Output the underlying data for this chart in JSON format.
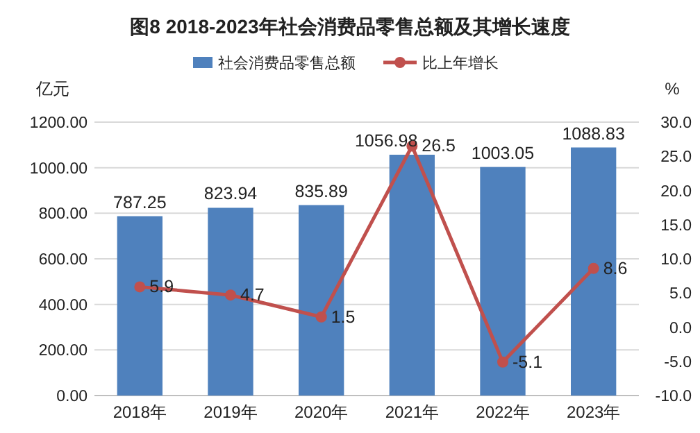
{
  "chart_data": {
    "type": "bar",
    "title": "图8  2018-2023年社会消费品零售总额及其增长速度",
    "ylabel": "亿元",
    "y2label": "%",
    "categories": [
      "2018年",
      "2019年",
      "2020年",
      "2021年",
      "2022年",
      "2023年"
    ],
    "series": [
      {
        "name": "社会消费品零售总额",
        "color": "#4f81bd",
        "values": [
          787.25,
          823.94,
          835.89,
          1056.98,
          1003.05,
          1088.83
        ]
      },
      {
        "name": "比上年增长",
        "type": "line",
        "axis": "y2",
        "color": "#c0504d",
        "values": [
          5.9,
          4.7,
          1.5,
          26.5,
          -5.1,
          8.6
        ]
      }
    ],
    "ylim": [
      0,
      1200
    ],
    "yticks": [
      {
        "value": 0,
        "label": "0.00"
      },
      {
        "value": 200,
        "label": "200.00"
      },
      {
        "value": 400,
        "label": "400.00"
      },
      {
        "value": 600,
        "label": "600.00"
      },
      {
        "value": 800,
        "label": "800.00"
      },
      {
        "value": 1000,
        "label": "1000.00"
      },
      {
        "value": 1200,
        "label": "1200.00"
      }
    ],
    "y2lim": [
      -10,
      30
    ],
    "y2ticks": [
      {
        "value": -10,
        "label": "-10.0"
      },
      {
        "value": -5,
        "label": "-5.0"
      },
      {
        "value": 0,
        "label": "0.0"
      },
      {
        "value": 5,
        "label": "5.0"
      },
      {
        "value": 10,
        "label": "10.0"
      },
      {
        "value": 15,
        "label": "15.0"
      },
      {
        "value": 20,
        "label": "20.0"
      },
      {
        "value": 25,
        "label": "25.0"
      },
      {
        "value": 30,
        "label": "30.0"
      }
    ],
    "marker": "circle",
    "line_style": "solid",
    "data_labels": true,
    "legend": "top",
    "grid": "y"
  }
}
